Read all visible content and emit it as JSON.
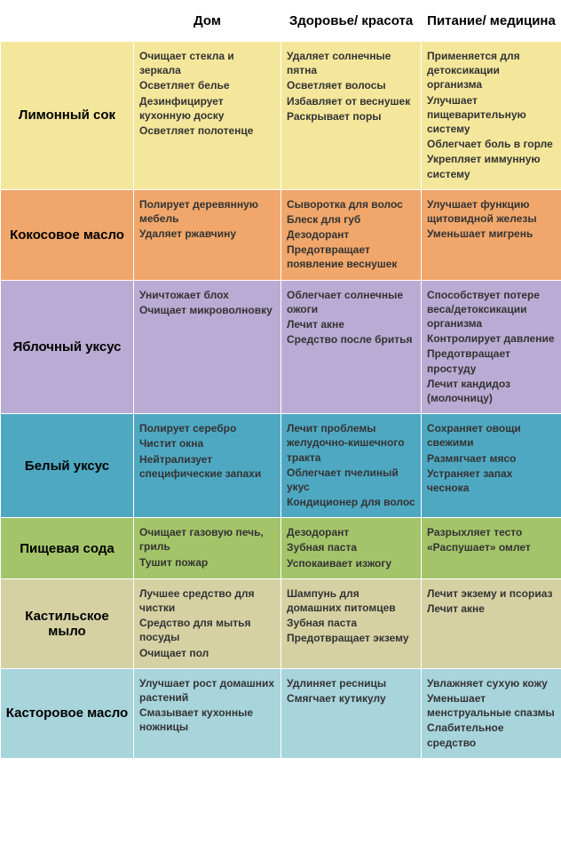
{
  "columns": [
    "Дом",
    "Здоровье/ красота",
    "Питание/ медицина"
  ],
  "rows": [
    {
      "label": "Лимонный сок",
      "bg": "#f4e79b",
      "cells": [
        [
          "Очищает стекла и зеркала",
          "Осветляет белье",
          "Дезинфицирует кухонную доску",
          "Осветляет полотенце"
        ],
        [
          "Удаляет солнечные пятна",
          "Осветляет волосы",
          "Избавляет от веснушек",
          "Раскрывает поры"
        ],
        [
          "Применяется для детоксикации организма",
          "Улучшает пищеварительную систему",
          "Облегчает боль в горле",
          "Укрепляет иммунную систему"
        ]
      ]
    },
    {
      "label": "Кокосовое масло",
      "bg": "#f1a76b",
      "cells": [
        [
          "Полирует деревянную мебель",
          "Удаляет ржавчину"
        ],
        [
          "Сыворотка для волос",
          "Блеск для губ",
          "Дезодорант",
          "Предотвращает появление веснушек"
        ],
        [
          "Улучшает функцию щитовидной железы",
          "Уменьшает мигрень"
        ]
      ]
    },
    {
      "label": "Яблочный уксус",
      "bg": "#b9abd3",
      "cells": [
        [
          "Уничтожает блох",
          "Очищает микроволновку"
        ],
        [
          "Облегчает солнечные ожоги",
          "Лечит акне",
          "Средство после бритья"
        ],
        [
          "Способствует потере веса/детоксикации организма",
          "Контролирует давление",
          "Предотвращает простуду",
          "Лечит кандидоз (молочницу)"
        ]
      ]
    },
    {
      "label": "Белый уксус",
      "bg": "#4fa8c2",
      "cells": [
        [
          "Полирует серебро",
          "Чистит окна",
          "Нейтрализует специфические запахи"
        ],
        [
          "Лечит проблемы желудочно-кишечного тракта",
          "Облегчает пчелиный укус",
          "Кондиционер для волос"
        ],
        [
          "Сохраняет овощи свежими",
          "Размягчает мясо",
          "Устраняет запах чеснока"
        ]
      ]
    },
    {
      "label": "Пищевая сода",
      "bg": "#a4c46a",
      "cells": [
        [
          "Очищает газовую печь, гриль",
          "Тушит пожар"
        ],
        [
          "Дезодорант",
          "Зубная паста",
          "Успокаивает изжогу"
        ],
        [
          "Разрыхляет тесто",
          "«Распушает» омлет"
        ]
      ]
    },
    {
      "label": "Кастильское мыло",
      "bg": "#d6d1a3",
      "cells": [
        [
          "Лучшее средство для чистки",
          "Средство для мытья посуды",
          "Очищает пол"
        ],
        [
          "Шампунь для домашних питомцев",
          "Зубная паста",
          "Предотвращает экзему"
        ],
        [
          "Лечит экзему и псориаз",
          "Лечит акне"
        ]
      ]
    },
    {
      "label": "Касторовое масло",
      "bg": "#a8d4dc",
      "cells": [
        [
          "Улучшает рост домашних растений",
          "Смазывает кухонные ножницы"
        ],
        [
          "Удлиняет ресницы",
          "Смягчает кутикулу"
        ],
        [
          "Увлажняет сухую кожу",
          "Уменьшает менструальные спазмы",
          "Слабительное средство"
        ]
      ]
    }
  ],
  "header_bg": "#ffffff",
  "header_color": "#000000",
  "cell_text_color": "#333333",
  "border_color": "#ffffff"
}
